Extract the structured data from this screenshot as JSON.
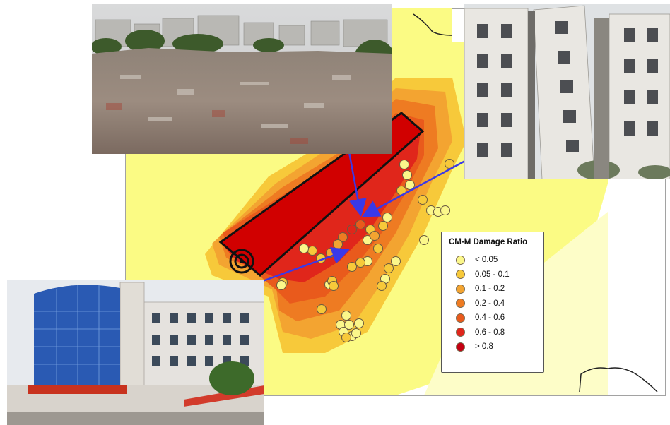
{
  "legend": {
    "title": "CM-M Damage Ratio",
    "items": [
      {
        "label": "< 0.05",
        "color": "#fbf78a"
      },
      {
        "label": "0.05 - 0.1",
        "color": "#f7c93a"
      },
      {
        "label": "0.1 - 0.2",
        "color": "#f3a431"
      },
      {
        "label": "0.2 - 0.4",
        "color": "#ee7b22"
      },
      {
        "label": "0.4 - 0.6",
        "color": "#e95a1c"
      },
      {
        "label": "0.6 - 0.8",
        "color": "#e0261b"
      },
      {
        "label": "> 0.8",
        "color": "#c40012"
      }
    ]
  },
  "photos": {
    "top_left": {
      "subject": "collapsed-buildings-rubble"
    },
    "top_right": {
      "subject": "damaged-apartment-buildings"
    },
    "bottom_left": {
      "subject": "office-building-shattered-glass"
    }
  },
  "colors": {
    "map_background": "#fbfb84",
    "pale_zone": "#fdfdc8",
    "high_damage": "#d10000",
    "arrow": "#3a39e8",
    "fault_outline": "#111111"
  }
}
